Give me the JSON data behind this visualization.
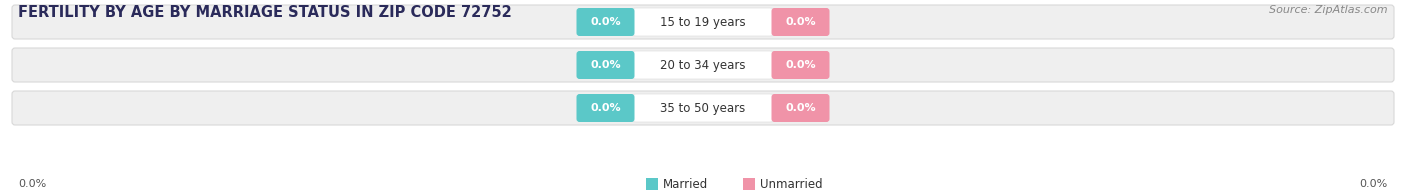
{
  "title": "FERTILITY BY AGE BY MARRIAGE STATUS IN ZIP CODE 72752",
  "source": "Source: ZipAtlas.com",
  "categories": [
    "15 to 19 years",
    "20 to 34 years",
    "35 to 50 years"
  ],
  "married_values": [
    0.0,
    0.0,
    0.0
  ],
  "unmarried_values": [
    0.0,
    0.0,
    0.0
  ],
  "married_color": "#5bc8c8",
  "unmarried_color": "#f093a8",
  "bar_bg_color": "#efefef",
  "bar_border_color": "#d8d8d8",
  "title_fontsize": 10.5,
  "source_fontsize": 8,
  "axis_label_value_left": "0.0%",
  "axis_label_value_right": "0.0%",
  "background_color": "#ffffff",
  "legend_married": "Married",
  "legend_unmarried": "Unmarried",
  "title_color": "#2a2a5a",
  "label_color": "#333333",
  "source_color": "#888888"
}
